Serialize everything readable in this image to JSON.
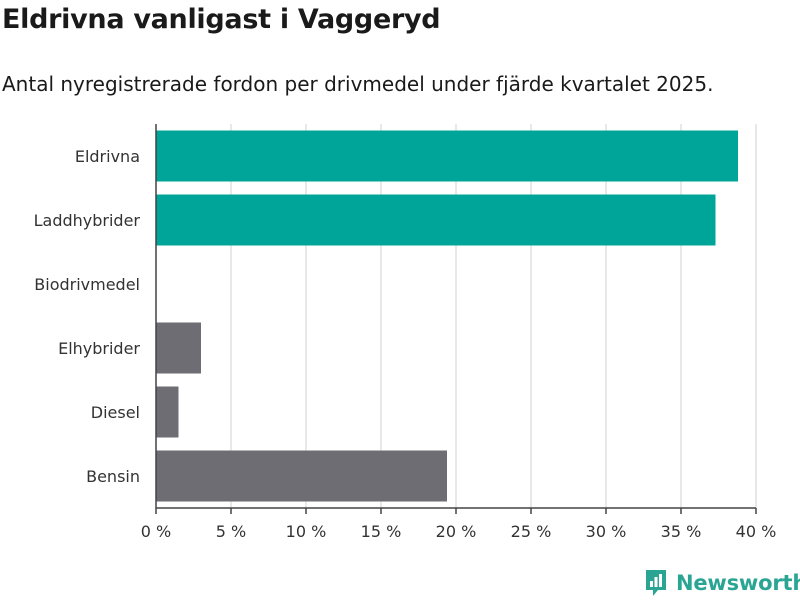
{
  "header": {
    "title": "Eldrivna vanligast i Vaggeryd",
    "subtitle": "Antal nyregistrerade fordon per drivmedel under fjärde kvartalet 2025."
  },
  "brand": {
    "name": "Newsworthy",
    "logo_icon": "newsworthy-logo-icon",
    "color": "#2aa594"
  },
  "colors": {
    "highlight": "#00a599",
    "default": "#6e6d74",
    "grid": "#e0e0e0"
  },
  "chart_data": {
    "type": "bar",
    "orientation": "horizontal",
    "title": "Eldrivna vanligast i Vaggeryd",
    "subtitle": "Antal nyregistrerade fordon per drivmedel under fjärde kvartalet 2025.",
    "categories": [
      "Eldrivna",
      "Laddhybrider",
      "Biodrivmedel",
      "Elhybrider",
      "Diesel",
      "Bensin"
    ],
    "values": [
      38.8,
      37.3,
      0,
      3.0,
      1.5,
      19.4
    ],
    "highlighted": [
      true,
      true,
      false,
      false,
      false,
      false
    ],
    "xlim": [
      0,
      40
    ],
    "ticks": [
      0,
      5,
      10,
      15,
      20,
      25,
      30,
      35,
      40
    ],
    "tick_labels": [
      "0 %",
      "5 %",
      "10 %",
      "15 %",
      "20 %",
      "25 %",
      "30 %",
      "35 %",
      "40 %"
    ],
    "xlabel": "",
    "ylabel": "",
    "grid": true,
    "legend": "none"
  }
}
